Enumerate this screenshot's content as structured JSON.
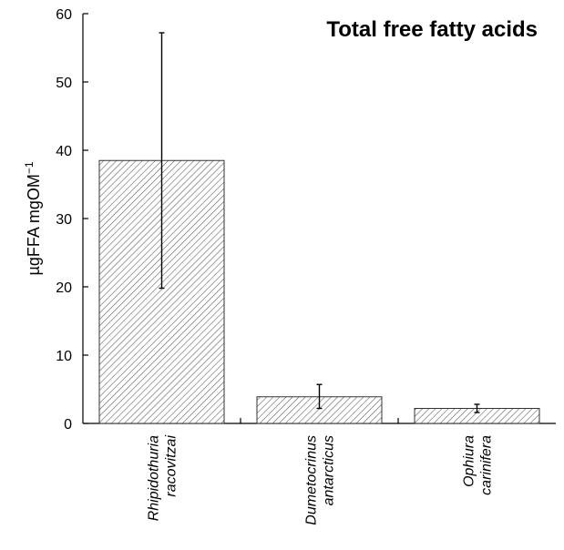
{
  "chart_data": {
    "type": "bar",
    "title": "Total free fatty acids",
    "ylabel": "µgFFA mgOM",
    "ylabel_sup": "−1",
    "ylim": [
      0,
      60
    ],
    "yticks": [
      0,
      10,
      20,
      30,
      40,
      50,
      60
    ],
    "grid": false,
    "bar_fill": "hatched",
    "categories": [
      {
        "line1": "Rhipidothuria",
        "line2": "racovitzai"
      },
      {
        "line1": "Dumetocrinus",
        "line2": "antarcticus"
      },
      {
        "line1": "Ophiura",
        "line2": "carinifera"
      }
    ],
    "values": [
      38.5,
      3.9,
      2.2
    ],
    "error_low": [
      19.8,
      2.2,
      1.6
    ],
    "error_high": [
      57.2,
      5.7,
      2.8
    ]
  },
  "colors": {
    "hatch": "#555555",
    "axis": "#000000"
  }
}
